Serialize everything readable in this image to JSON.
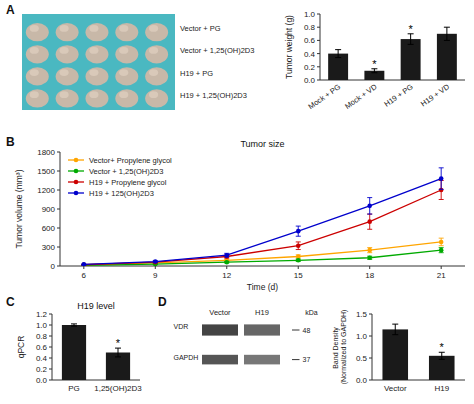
{
  "chart_data": [
    {
      "type": "image",
      "categories": [
        "Vector +  PG",
        "Vector +  1,25(OH)2D3",
        "H19 + PG",
        "H19 + 1,25(OH)2D3"
      ],
      "annotations": [
        {
          "text": "A"
        }
      ]
    },
    {
      "type": "bar",
      "categories": [
        "Mock + PG",
        "Mock + VD",
        "H19 + PG",
        "H19 + VD"
      ],
      "values": [
        0.4,
        0.14,
        0.62,
        0.7
      ],
      "errors": [
        0.06,
        0.03,
        0.08,
        0.1
      ],
      "color": "#1a1a1a",
      "ylabel": "Tumor weight (g)",
      "ylim": [
        0,
        1.0
      ],
      "yticks": [
        {
          "value": 0,
          "label": "0.0"
        },
        0.2,
        0.4,
        0.6,
        0.8,
        {
          "value": 1.0,
          "label": "1.0"
        }
      ],
      "annotations": [
        {
          "text": "*",
          "x": "Mock + VD"
        },
        {
          "text": "*",
          "x": "H19 + PG"
        }
      ]
    },
    {
      "type": "line",
      "title": "Tumor size",
      "xlabel": "Time (d)",
      "ylabel": "Tumor volume (mm³)",
      "xlim": [
        5,
        22
      ],
      "ylim": [
        0,
        1800
      ],
      "xticks": [
        6,
        9,
        12,
        15,
        18,
        21
      ],
      "yticks": [
        0,
        300,
        600,
        900,
        1200,
        1500,
        1800
      ],
      "x": [
        6,
        9,
        12,
        15,
        18,
        21
      ],
      "marker": "circle",
      "legend": "upper left",
      "series": [
        {
          "name": "Vector+  Propylene glycol",
          "color": "#FFA500",
          "values": [
            20,
            50,
            90,
            150,
            250,
            380
          ],
          "errors": [
            5,
            10,
            15,
            25,
            40,
            60
          ]
        },
        {
          "name": "Vector + 1,25(OH)2D3",
          "color": "#00AA00",
          "values": [
            10,
            30,
            60,
            90,
            130,
            250
          ],
          "errors": [
            3,
            8,
            12,
            18,
            25,
            40
          ]
        },
        {
          "name": "H19 +  Propylene glycol",
          "color": "#CC0000",
          "values": [
            20,
            60,
            150,
            320,
            700,
            1200
          ],
          "errors": [
            5,
            12,
            25,
            60,
            120,
            150
          ]
        },
        {
          "name": "H19 + 125(OH)2D3",
          "color": "#0000CC",
          "values": [
            25,
            70,
            170,
            550,
            950,
            1380
          ],
          "errors": [
            6,
            14,
            30,
            80,
            130,
            170
          ]
        }
      ],
      "annotations": [
        {
          "text": "B"
        }
      ]
    },
    {
      "type": "bar",
      "title": "H19 level",
      "categories": [
        "PG",
        "1,25(OH)2D3"
      ],
      "values": [
        1.0,
        0.5
      ],
      "errors": [
        0.02,
        0.08
      ],
      "color": "#1a1a1a",
      "ylabel": "qPCR",
      "ylim": [
        0,
        1.2
      ],
      "yticks": [
        {
          "value": 0,
          "label": "0.0"
        },
        0.2,
        0.4,
        0.6,
        0.8,
        {
          "value": 1.0,
          "label": "1.0"
        },
        1.2
      ],
      "annotations": [
        {
          "text": "C"
        },
        {
          "text": "*",
          "x": "1,25(OH)2D3"
        }
      ]
    },
    {
      "type": "blot",
      "categories": [
        "Vector",
        "H19"
      ],
      "annotations": [
        {
          "text": "D"
        },
        {
          "text": "kDa"
        },
        {
          "text": "VDR"
        },
        {
          "text": "48"
        },
        {
          "text": "GAPDH"
        },
        {
          "text": "37"
        }
      ]
    },
    {
      "type": "bar",
      "categories": [
        "Vector",
        "H19"
      ],
      "values": [
        1.15,
        0.55
      ],
      "errors": [
        0.12,
        0.08
      ],
      "color": "#1a1a1a",
      "ylabel": "Band Density (Normalized to GAPDH)",
      "ylim": [
        0,
        1.5
      ],
      "yticks": [
        {
          "value": 0,
          "label": "0.0"
        },
        0.5,
        {
          "value": 1.0,
          "label": "1.0"
        },
        1.5
      ],
      "annotations": [
        {
          "text": "*",
          "x": "H19"
        }
      ]
    }
  ]
}
